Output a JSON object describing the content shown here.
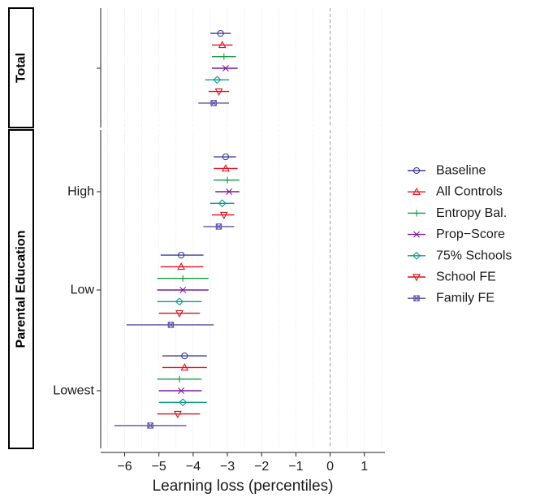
{
  "chart_data": {
    "type": "scatter",
    "subtype": "forest-plot-with-error-bars",
    "xlabel": "Learning loss (percentiles)",
    "xlim": [
      -6.7,
      1.6
    ],
    "xticks": [
      -6,
      -5,
      -4,
      -3,
      -2,
      -1,
      0,
      1
    ],
    "xtick_labels": [
      "−6",
      "−5",
      "−4",
      "−3",
      "−2",
      "−1",
      "0",
      "1"
    ],
    "reference_line_x": 0,
    "grid": "vertical-minor",
    "legend_position": "right",
    "series": [
      {
        "name": "Baseline",
        "color": "#3a3a9a",
        "marker": "circle"
      },
      {
        "name": "All Controls",
        "color": "#e8101f",
        "marker": "triangle-up"
      },
      {
        "name": "Entropy Bal.",
        "color": "#119a45",
        "marker": "plus"
      },
      {
        "name": "Prop−Score",
        "color": "#7d1a9b",
        "marker": "cross"
      },
      {
        "name": "75% Schools",
        "color": "#119a8c",
        "marker": "diamond"
      },
      {
        "name": "School FE",
        "color": "#d2141e",
        "marker": "triangle-down"
      },
      {
        "name": "Family FE",
        "color": "#5c4fa8",
        "marker": "square-cross"
      }
    ],
    "panels": [
      {
        "strip_label": "Total",
        "groups": [
          {
            "label": "",
            "estimates": [
              {
                "series": "Baseline",
                "est": -3.2,
                "lo": -3.5,
                "hi": -2.9
              },
              {
                "series": "All Controls",
                "est": -3.15,
                "lo": -3.45,
                "hi": -2.85
              },
              {
                "series": "Entropy Bal.",
                "est": -3.1,
                "lo": -3.45,
                "hi": -2.75
              },
              {
                "series": "Prop−Score",
                "est": -3.05,
                "lo": -3.45,
                "hi": -2.7
              },
              {
                "series": "75% Schools",
                "est": -3.3,
                "lo": -3.65,
                "hi": -2.95
              },
              {
                "series": "School FE",
                "est": -3.25,
                "lo": -3.55,
                "hi": -2.95
              },
              {
                "series": "Family FE",
                "est": -3.4,
                "lo": -3.85,
                "hi": -2.95
              }
            ]
          }
        ]
      },
      {
        "strip_label": "Parental Education",
        "groups": [
          {
            "label": "High",
            "estimates": [
              {
                "series": "Baseline",
                "est": -3.05,
                "lo": -3.4,
                "hi": -2.75
              },
              {
                "series": "All Controls",
                "est": -3.05,
                "lo": -3.4,
                "hi": -2.7
              },
              {
                "series": "Entropy Bal.",
                "est": -3.0,
                "lo": -3.4,
                "hi": -2.65
              },
              {
                "series": "Prop−Score",
                "est": -2.95,
                "lo": -3.35,
                "hi": -2.65
              },
              {
                "series": "75% Schools",
                "est": -3.15,
                "lo": -3.5,
                "hi": -2.8
              },
              {
                "series": "School FE",
                "est": -3.1,
                "lo": -3.45,
                "hi": -2.8
              },
              {
                "series": "Family FE",
                "est": -3.25,
                "lo": -3.7,
                "hi": -2.8
              }
            ]
          },
          {
            "label": "Low",
            "estimates": [
              {
                "series": "Baseline",
                "est": -4.35,
                "lo": -4.95,
                "hi": -3.7
              },
              {
                "series": "All Controls",
                "est": -4.35,
                "lo": -4.95,
                "hi": -3.7
              },
              {
                "series": "Entropy Bal.",
                "est": -4.3,
                "lo": -5.05,
                "hi": -3.55
              },
              {
                "series": "Prop−Score",
                "est": -4.3,
                "lo": -5.05,
                "hi": -3.55
              },
              {
                "series": "75% Schools",
                "est": -4.4,
                "lo": -5.05,
                "hi": -3.75
              },
              {
                "series": "School FE",
                "est": -4.4,
                "lo": -5.0,
                "hi": -3.8
              },
              {
                "series": "Family FE",
                "est": -4.65,
                "lo": -5.95,
                "hi": -3.4
              }
            ]
          },
          {
            "label": "Lowest",
            "estimates": [
              {
                "series": "Baseline",
                "est": -4.25,
                "lo": -4.9,
                "hi": -3.6
              },
              {
                "series": "All Controls",
                "est": -4.25,
                "lo": -4.9,
                "hi": -3.6
              },
              {
                "series": "Entropy Bal.",
                "est": -4.4,
                "lo": -5.05,
                "hi": -3.75
              },
              {
                "series": "Prop−Score",
                "est": -4.35,
                "lo": -5.0,
                "hi": -3.75
              },
              {
                "series": "75% Schools",
                "est": -4.3,
                "lo": -5.0,
                "hi": -3.6
              },
              {
                "series": "School FE",
                "est": -4.45,
                "lo": -5.05,
                "hi": -3.8
              },
              {
                "series": "Family FE",
                "est": -5.25,
                "lo": -6.3,
                "hi": -4.2
              }
            ]
          }
        ]
      }
    ]
  }
}
